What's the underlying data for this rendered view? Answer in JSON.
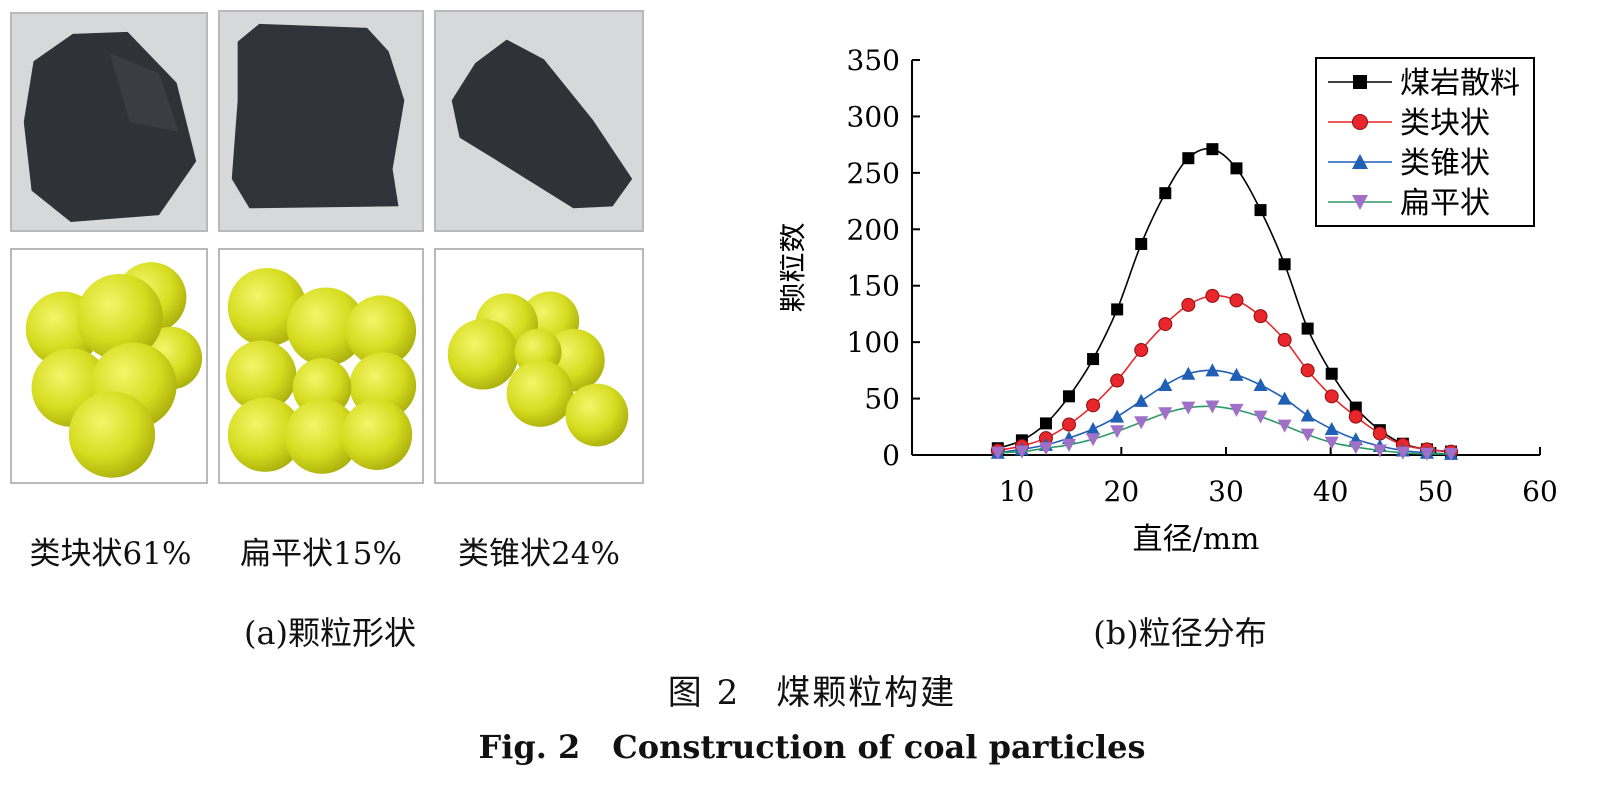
{
  "panel_a": {
    "shapes": [
      {
        "label": "类块状61%",
        "particle_shape": "blocky"
      },
      {
        "label": "扁平状15%",
        "particle_shape": "flat"
      },
      {
        "label": "类锥状24%",
        "particle_shape": "conical"
      }
    ],
    "caption": "(a)颗粒形状",
    "colors": {
      "coal": "#2f3237",
      "photo_bg": "#d4d6d8",
      "sphere": "#d6dc1f"
    }
  },
  "panel_b": {
    "caption": "(b)粒径分布"
  },
  "figure": {
    "caption_cn": "图 2　煤颗粒构建",
    "caption_en": "Fig. 2　Construction of coal particles"
  },
  "chart_data": {
    "type": "line",
    "xlabel": "直径/mm",
    "ylabel": "颗粒数",
    "xlim": [
      0,
      60
    ],
    "ylim": [
      0,
      350
    ],
    "xticks": [
      10,
      20,
      30,
      40,
      50,
      60
    ],
    "yticks": [
      0,
      50,
      100,
      150,
      200,
      250,
      300,
      350
    ],
    "grid": false,
    "legend_position": "top-right",
    "x": [
      8.2,
      10.5,
      12.8,
      15.0,
      17.3,
      19.6,
      21.9,
      24.2,
      26.4,
      28.7,
      31.0,
      33.3,
      35.6,
      37.8,
      40.1,
      42.4,
      44.7,
      46.9,
      49.2,
      51.5
    ],
    "series": [
      {
        "name": "煤岩散料",
        "marker": "square",
        "color": "#000000",
        "values": [
          6,
          13,
          28,
          52,
          85,
          129,
          187,
          232,
          263,
          271,
          254,
          217,
          169,
          112,
          72,
          42,
          22,
          10,
          5,
          3
        ]
      },
      {
        "name": "类块状",
        "marker": "circle",
        "color": "#e8262b",
        "values": [
          4,
          8,
          15,
          27,
          44,
          66,
          93,
          116,
          133,
          141,
          137,
          123,
          102,
          75,
          52,
          34,
          19,
          9,
          5,
          3
        ]
      },
      {
        "name": "类锥状",
        "marker": "triangle-up",
        "color": "#1f5fb5",
        "values": [
          2,
          5,
          9,
          15,
          23,
          34,
          48,
          62,
          72,
          75,
          71,
          62,
          50,
          35,
          23,
          14,
          8,
          4,
          2,
          1
        ]
      },
      {
        "name": "扁平状",
        "marker": "triangle-down",
        "color": "#2e9a68",
        "values": [
          2,
          3,
          6,
          9,
          14,
          21,
          29,
          37,
          42,
          43,
          40,
          34,
          26,
          18,
          11,
          7,
          4,
          2,
          1,
          1
        ]
      }
    ]
  }
}
